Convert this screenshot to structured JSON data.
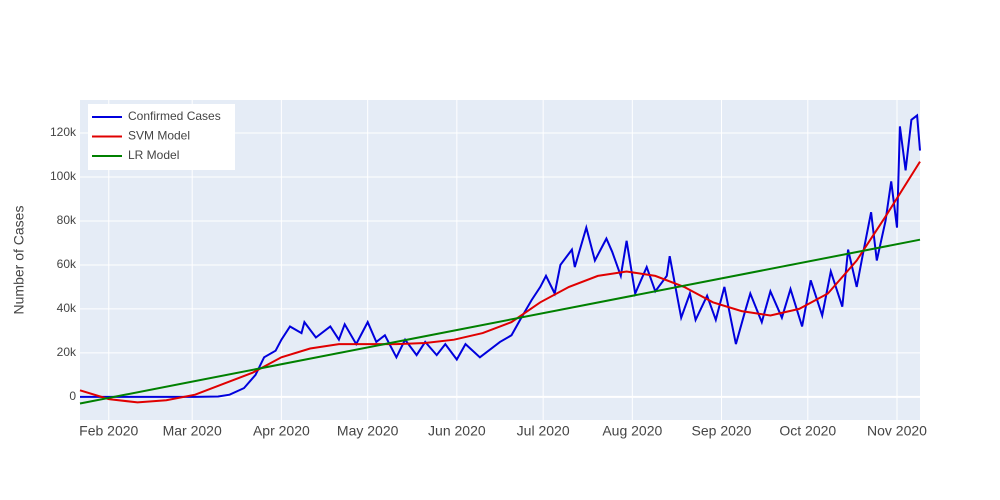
{
  "chart_data": {
    "type": "line",
    "y_label": "Number of Cases",
    "xlim": [
      0,
      292
    ],
    "xticks": [
      {
        "value": 10,
        "label": "Feb 2020"
      },
      {
        "value": 39,
        "label": "Mar 2020"
      },
      {
        "value": 70,
        "label": "Apr 2020"
      },
      {
        "value": 100,
        "label": "May 2020"
      },
      {
        "value": 131,
        "label": "Jun 2020"
      },
      {
        "value": 161,
        "label": "Jul 2020"
      },
      {
        "value": 192,
        "label": "Aug 2020"
      },
      {
        "value": 223,
        "label": "Sep 2020"
      },
      {
        "value": 253,
        "label": "Oct 2020"
      },
      {
        "value": 284,
        "label": "Nov 2020"
      }
    ],
    "ylim": [
      -10500,
      135000
    ],
    "yticks": [
      0,
      {
        "value": 20000,
        "label": "20k"
      },
      {
        "value": 40000,
        "label": "40k"
      },
      {
        "value": 60000,
        "label": "60k"
      },
      {
        "value": 80000,
        "label": "80k"
      },
      {
        "value": 100000,
        "label": "100k"
      },
      {
        "value": 120000,
        "label": "120k"
      }
    ],
    "grid": true,
    "legend": "top-left",
    "series": [
      {
        "name": "Confirmed Cases",
        "color": "#0000dd",
        "x": [
          0,
          10,
          20,
          30,
          40,
          48,
          52,
          57,
          61,
          64,
          68,
          70,
          73,
          77,
          78,
          82,
          87,
          90,
          92,
          96,
          100,
          103,
          106,
          110,
          113,
          117,
          120,
          124,
          127,
          131,
          134,
          139,
          146,
          150,
          153,
          157,
          160,
          162,
          165,
          167,
          171,
          172,
          176,
          179,
          183,
          185,
          188,
          190,
          193,
          197,
          200,
          204,
          205,
          209,
          212,
          214,
          218,
          221,
          224,
          228,
          231,
          233,
          237,
          240,
          244,
          247,
          251,
          254,
          258,
          261,
          265,
          267,
          270,
          272,
          275,
          277,
          280,
          282,
          284,
          285,
          287,
          289,
          291,
          292
        ],
        "values": [
          0,
          0,
          0,
          0,
          0,
          200,
          1000,
          4000,
          10000,
          18000,
          21000,
          26000,
          32000,
          29000,
          34000,
          27000,
          32000,
          26000,
          33000,
          24000,
          34000,
          25000,
          28000,
          18000,
          26000,
          19000,
          25000,
          19000,
          24000,
          17000,
          24000,
          18000,
          25000,
          28000,
          35000,
          44000,
          50000,
          55000,
          47000,
          60000,
          67000,
          59000,
          77000,
          62000,
          72000,
          66000,
          55000,
          71000,
          47000,
          59000,
          48000,
          55000,
          64000,
          36000,
          47000,
          35000,
          46000,
          35000,
          50000,
          24000,
          38000,
          47000,
          34000,
          48000,
          36000,
          49000,
          32000,
          53000,
          37000,
          57000,
          41000,
          67000,
          50000,
          64000,
          84000,
          62000,
          80000,
          98000,
          77000,
          123000,
          103000,
          126000,
          128000,
          112000
        ]
      },
      {
        "name": "SVM Model",
        "color": "#e00000",
        "x": [
          0,
          10,
          20,
          30,
          40,
          50,
          60,
          70,
          80,
          90,
          100,
          110,
          120,
          130,
          140,
          150,
          160,
          170,
          180,
          190,
          200,
          210,
          220,
          230,
          240,
          250,
          260,
          270,
          280,
          292
        ],
        "values": [
          3000,
          -1000,
          -2500,
          -1500,
          1000,
          6000,
          11000,
          18000,
          22000,
          24000,
          24000,
          24000,
          24500,
          26000,
          29000,
          34000,
          43000,
          50000,
          55000,
          57000,
          55000,
          50000,
          43000,
          39000,
          37000,
          40000,
          47000,
          62000,
          82000,
          107000
        ]
      },
      {
        "name": "LR Model",
        "color": "#008000",
        "x": [
          0,
          292
        ],
        "values": [
          -3000,
          71500
        ]
      }
    ]
  }
}
